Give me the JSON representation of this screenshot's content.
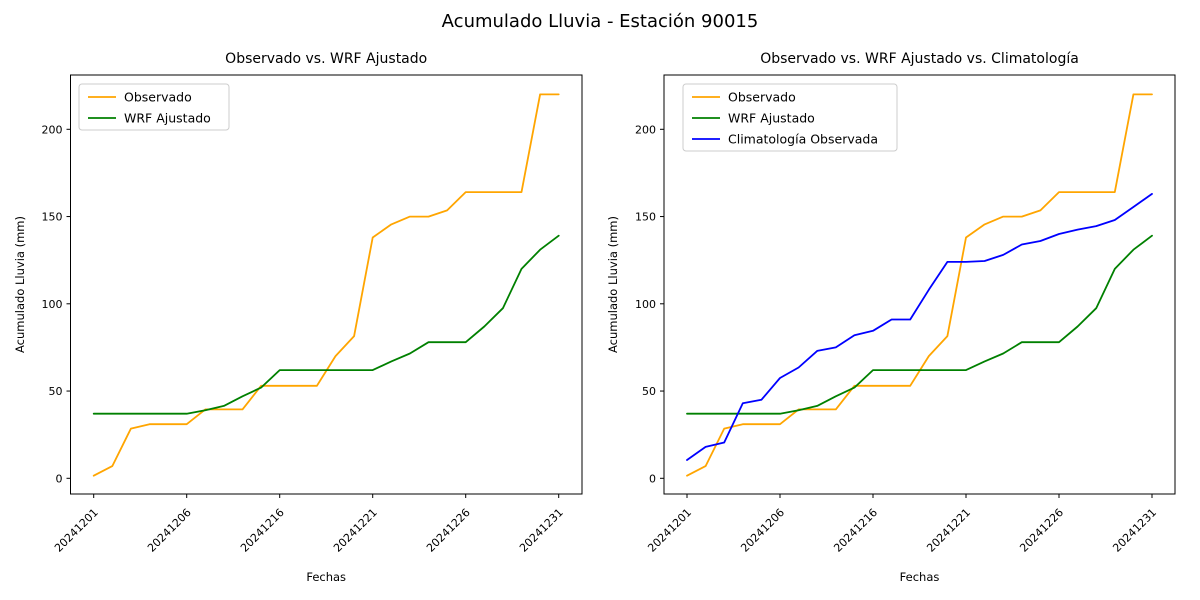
{
  "suptitle": "Acumulado Lluvia - Estación 90015",
  "chart_data": [
    {
      "type": "line",
      "title": "Observado vs. WRF Ajustado",
      "xlabel": "Fechas",
      "ylabel": "Acumulado Lluvia (mm)",
      "n_points": 26,
      "x_tick_positions": [
        0,
        5,
        10,
        15,
        20,
        25
      ],
      "x_tick_labels": [
        "20241201",
        "20241206",
        "20241216",
        "20241221",
        "20241226",
        "20241231"
      ],
      "y_ticks": [
        0,
        50,
        100,
        150,
        200
      ],
      "ylim": [
        -9,
        231
      ],
      "grid": false,
      "legend_position": "upper left",
      "series": [
        {
          "name": "Observado",
          "color": "#FFA500",
          "values": [
            1.5,
            7,
            28.5,
            31,
            31,
            31,
            39.5,
            39.5,
            39.5,
            53,
            53,
            53,
            53,
            70,
            81.5,
            138,
            145.5,
            150,
            150,
            153.5,
            164,
            164,
            164,
            164,
            220,
            220
          ]
        },
        {
          "name": "WRF Ajustado",
          "color": "#008000",
          "values": [
            37,
            37,
            37,
            37,
            37,
            37,
            39,
            41.5,
            47,
            52,
            62,
            62,
            62,
            62,
            62,
            62,
            67,
            71.5,
            78,
            78,
            78,
            87,
            97.5,
            120,
            131,
            139
          ]
        }
      ]
    },
    {
      "type": "line",
      "title": "Observado vs. WRF Ajustado vs. Climatología",
      "xlabel": "Fechas",
      "ylabel": "Acumulado Lluvia (mm)",
      "n_points": 26,
      "x_tick_positions": [
        0,
        5,
        10,
        15,
        20,
        25
      ],
      "x_tick_labels": [
        "20241201",
        "20241206",
        "20241216",
        "20241221",
        "20241226",
        "20241231"
      ],
      "y_ticks": [
        0,
        50,
        100,
        150,
        200
      ],
      "ylim": [
        -9,
        231
      ],
      "grid": false,
      "legend_position": "upper left",
      "series": [
        {
          "name": "Observado",
          "color": "#FFA500",
          "values": [
            1.5,
            7,
            28.5,
            31,
            31,
            31,
            39.5,
            39.5,
            39.5,
            53,
            53,
            53,
            53,
            70,
            81.5,
            138,
            145.5,
            150,
            150,
            153.5,
            164,
            164,
            164,
            164,
            220,
            220
          ]
        },
        {
          "name": "WRF Ajustado",
          "color": "#008000",
          "values": [
            37,
            37,
            37,
            37,
            37,
            37,
            39,
            41.5,
            47,
            52,
            62,
            62,
            62,
            62,
            62,
            62,
            67,
            71.5,
            78,
            78,
            78,
            87,
            97.5,
            120,
            131,
            139
          ]
        },
        {
          "name": "Climatología Observada",
          "color": "#0000FF",
          "values": [
            10.5,
            18,
            20.5,
            43,
            45,
            57.5,
            63.5,
            73,
            75,
            82,
            84.5,
            91,
            91,
            108,
            124,
            124,
            124.5,
            128,
            134,
            136,
            140,
            142.5,
            144.5,
            148,
            155.5,
            163
          ]
        }
      ]
    }
  ]
}
